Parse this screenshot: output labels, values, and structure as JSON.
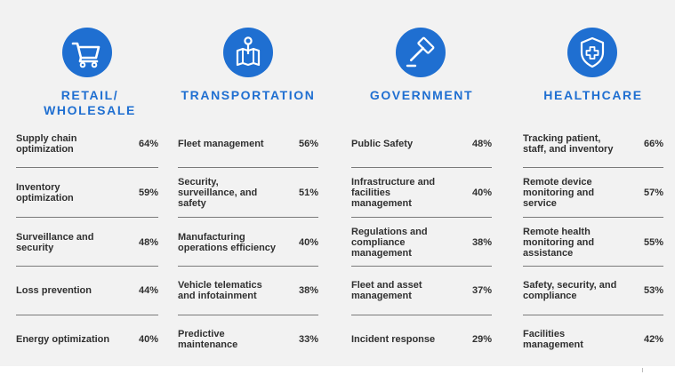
{
  "colors": {
    "accent": "#1f6fd1",
    "panel": "#f2f2f2",
    "rule": "#7a7a7a"
  },
  "columns": [
    {
      "heading": "RETAIL/\nWHOLESALE",
      "icon": "shopping-cart-icon",
      "items": [
        {
          "label": "Supply chain optimization",
          "percent": "64%"
        },
        {
          "label": "Inventory optimization",
          "percent": "59%"
        },
        {
          "label": "Surveillance and security",
          "percent": "48%"
        },
        {
          "label": "Loss prevention",
          "percent": "44%"
        },
        {
          "label": "Energy optimization",
          "percent": "40%"
        }
      ]
    },
    {
      "heading": "TRANSPORTATION",
      "icon": "map-pin-icon",
      "items": [
        {
          "label": "Fleet management",
          "percent": "56%"
        },
        {
          "label": "Security, surveillance, and safety",
          "percent": "51%"
        },
        {
          "label": "Manufacturing operations efficiency",
          "percent": "40%"
        },
        {
          "label": "Vehicle telematics and infotainment",
          "percent": "38%"
        },
        {
          "label": "Predictive maintenance",
          "percent": "33%"
        }
      ]
    },
    {
      "heading": "GOVERNMENT",
      "icon": "gavel-icon",
      "items": [
        {
          "label": "Public Safety",
          "percent": "48%"
        },
        {
          "label": "Infrastructure and facilities management",
          "percent": "40%"
        },
        {
          "label": "Regulations and compliance management",
          "percent": "38%"
        },
        {
          "label": "Fleet and asset management",
          "percent": "37%"
        },
        {
          "label": "Incident response",
          "percent": "29%"
        }
      ]
    },
    {
      "heading": "HEALTHCARE",
      "icon": "medical-shield-icon",
      "items": [
        {
          "label": "Tracking patient, staff, and inventory",
          "percent": "66%"
        },
        {
          "label": "Remote device monitoring and service",
          "percent": "57%"
        },
        {
          "label": "Remote health monitoring and assistance",
          "percent": "55%"
        },
        {
          "label": "Safety, security, and compliance",
          "percent": "53%"
        },
        {
          "label": "Facilities management",
          "percent": "42%"
        }
      ]
    }
  ]
}
